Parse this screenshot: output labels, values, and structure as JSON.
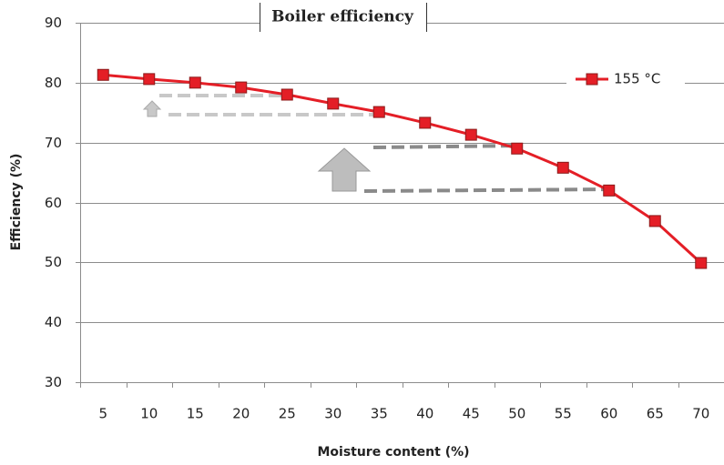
{
  "chart_data": {
    "type": "line",
    "title": "Boiler efficiency",
    "x_label": "Moisture content (%)",
    "y_label": "Efficiency (%)",
    "categories": [
      "5",
      "10",
      "15",
      "20",
      "25",
      "30",
      "35",
      "40",
      "45",
      "50",
      "55",
      "60",
      "65",
      "70"
    ],
    "series": [
      {
        "name": "155 °C",
        "color": "#e41e26",
        "values": [
          81.3,
          80.6,
          80.0,
          79.2,
          78.0,
          76.5,
          75.1,
          73.3,
          71.3,
          69.0,
          65.8,
          62.0,
          56.9,
          49.9
        ]
      }
    ],
    "ylim": [
      30,
      90
    ],
    "yticks": [
      30,
      40,
      50,
      60,
      70,
      80,
      90
    ],
    "grid": true,
    "legend": "top-right"
  }
}
